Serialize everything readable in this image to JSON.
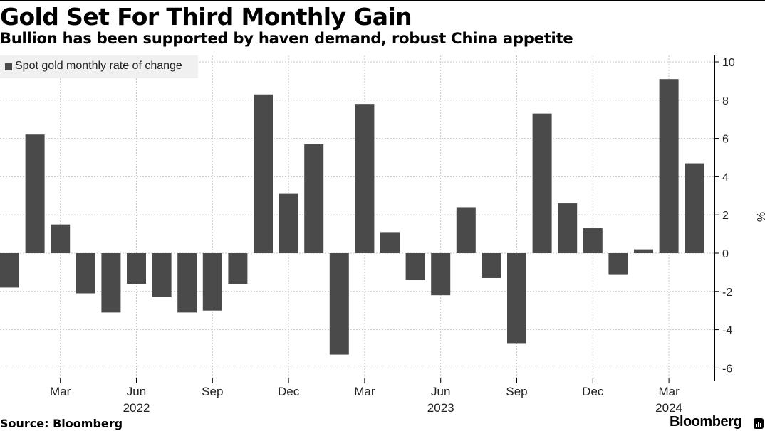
{
  "header": {
    "title": "Gold Set For Third Monthly Gain",
    "subtitle": "Bullion has been supported by haven demand, robust China appetite"
  },
  "footer": {
    "source": "Source: Bloomberg",
    "brand": "Bloomberg"
  },
  "colors": {
    "bar": "#4a4a4a",
    "grid": "#c8c8c8",
    "axis": "#000000",
    "legend_bg": "#f0f0f0"
  },
  "chart_data": {
    "type": "bar",
    "legend": {
      "entries": [
        "Spot gold monthly rate of change"
      ],
      "placement": "top-left"
    },
    "categories": [
      "Jan 2022",
      "Feb 2022",
      "Mar 2022",
      "Apr 2022",
      "May 2022",
      "Jun 2022",
      "Jul 2022",
      "Aug 2022",
      "Sep 2022",
      "Oct 2022",
      "Nov 2022",
      "Dec 2022",
      "Jan 2023",
      "Feb 2023",
      "Mar 2023",
      "Apr 2023",
      "May 2023",
      "Jun 2023",
      "Jul 2023",
      "Aug 2023",
      "Sep 2023",
      "Oct 2023",
      "Nov 2023",
      "Dec 2023",
      "Jan 2024",
      "Feb 2024",
      "Mar 2024",
      "Apr 2024"
    ],
    "series": [
      {
        "name": "Spot gold monthly rate of change",
        "values": [
          -1.8,
          6.2,
          1.5,
          -2.1,
          -3.1,
          -1.6,
          -2.3,
          -3.1,
          -3.0,
          -1.6,
          8.3,
          3.1,
          5.7,
          -5.3,
          7.8,
          1.1,
          -1.4,
          -2.2,
          2.4,
          -1.3,
          -4.7,
          7.3,
          2.6,
          1.3,
          -1.1,
          0.2,
          9.1,
          4.7
        ]
      }
    ],
    "x_ticks": [
      {
        "label": "Mar",
        "index": 2
      },
      {
        "label": "Jun",
        "index": 5
      },
      {
        "label": "Sep",
        "index": 8
      },
      {
        "label": "Dec",
        "index": 11
      },
      {
        "label": "Mar",
        "index": 14
      },
      {
        "label": "Jun",
        "index": 17
      },
      {
        "label": "Sep",
        "index": 20
      },
      {
        "label": "Dec",
        "index": 23
      },
      {
        "label": "Mar",
        "index": 26
      }
    ],
    "year_labels": [
      {
        "label": "2022",
        "index": 5
      },
      {
        "label": "2023",
        "index": 17
      },
      {
        "label": "2024",
        "index": 26
      }
    ],
    "y_ticks": [
      10,
      8,
      6,
      4,
      2,
      0,
      -2,
      -4,
      -6
    ],
    "ylabel": "%",
    "ylim": [
      -6.5,
      10.5
    ],
    "grid": true,
    "y_axis_side": "right"
  }
}
